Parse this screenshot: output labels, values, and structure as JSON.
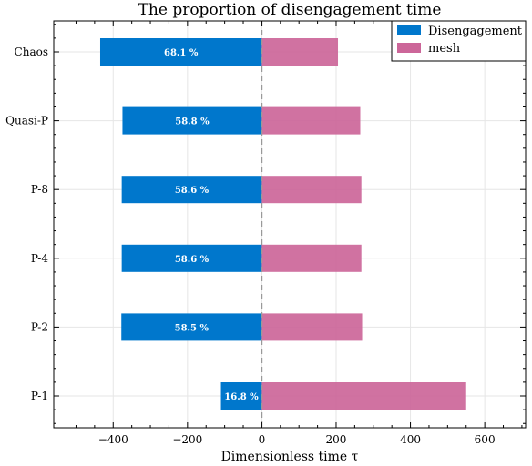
{
  "chart_data": {
    "type": "bar",
    "orientation": "horizontal",
    "title": "The proportion of disengagement time",
    "xlabel": "Dimensionless time τ",
    "ylabel": "",
    "categories": [
      "P-1",
      "P-2",
      "P-4",
      "P-8",
      "Quasi-P",
      "Chaos"
    ],
    "series": [
      {
        "name": "Disengagement",
        "color": "#0077cc",
        "values": [
          -110,
          -378,
          -377,
          -377,
          -375,
          -435
        ]
      },
      {
        "name": "mesh",
        "color": "#cc6699",
        "values": [
          550,
          270,
          268,
          268,
          265,
          205
        ]
      }
    ],
    "bar_labels": [
      "16.8 %",
      "58.5 %",
      "58.6 %",
      "58.6 %",
      "58.8 %",
      "68.1 %"
    ],
    "xticks": [
      -400,
      -200,
      0,
      200,
      400,
      600
    ],
    "xlim": [
      -560,
      710
    ],
    "zero_line": {
      "style": "dashed",
      "color": "#999999"
    },
    "grid": true,
    "legend": "top-right"
  }
}
